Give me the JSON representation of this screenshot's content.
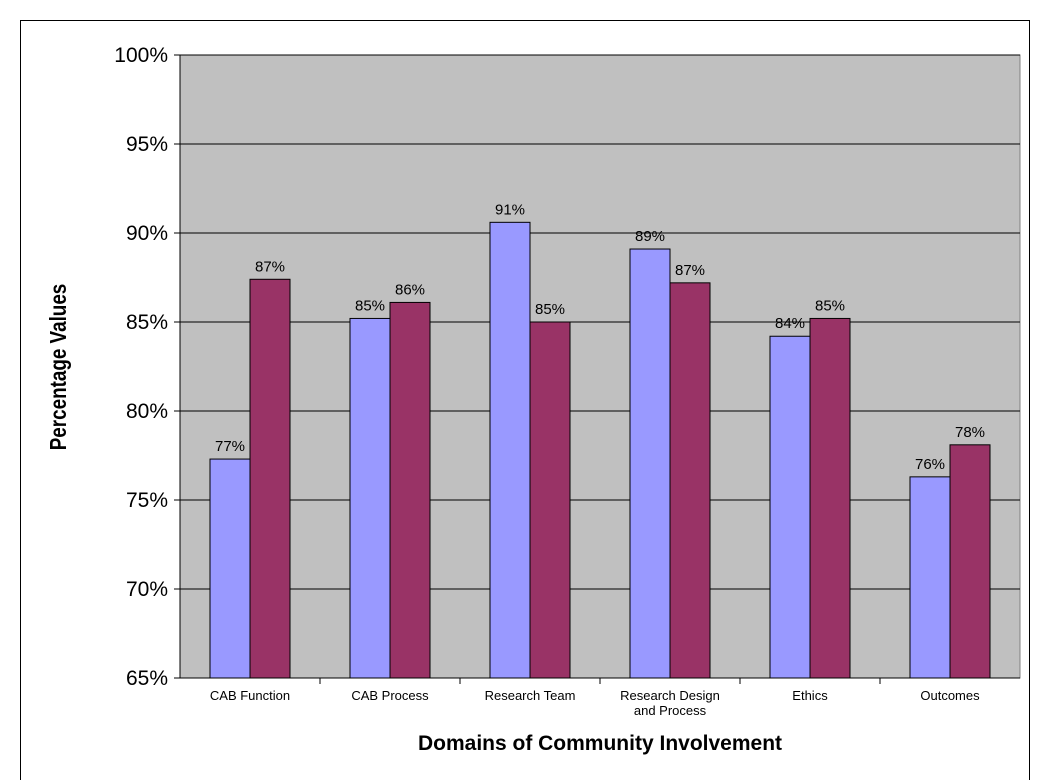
{
  "chart_data": {
    "type": "bar",
    "title": "",
    "xlabel": "Domains of Community Involvement",
    "ylabel": "Percentage Values",
    "ylim": [
      65,
      100
    ],
    "ytick_step": 5,
    "ytick_labels": [
      "65%",
      "70%",
      "75%",
      "80%",
      "85%",
      "90%",
      "95%",
      "100%"
    ],
    "grid": true,
    "legend": "none",
    "categories": [
      [
        "CAB Function"
      ],
      [
        "CAB Process"
      ],
      [
        "Research Team"
      ],
      [
        "Research Design",
        "and Process"
      ],
      [
        "Ethics"
      ],
      [
        "Outcomes"
      ]
    ],
    "series": [
      {
        "color": "#9999ff",
        "values": [
          77.3,
          85.2,
          90.6,
          89.1,
          84.2,
          76.3
        ],
        "labels": [
          "77%",
          "85%",
          "91%",
          "89%",
          "84%",
          "76%"
        ]
      },
      {
        "color": "#993366",
        "values": [
          87.4,
          86.1,
          85.0,
          87.2,
          85.2,
          78.1
        ],
        "labels": [
          "87%",
          "86%",
          "85%",
          "87%",
          "85%",
          "78%"
        ]
      }
    ],
    "colors": {
      "plot_background": "#c0c0c0",
      "gridline": "#000000",
      "bar_border": "#000000"
    }
  }
}
